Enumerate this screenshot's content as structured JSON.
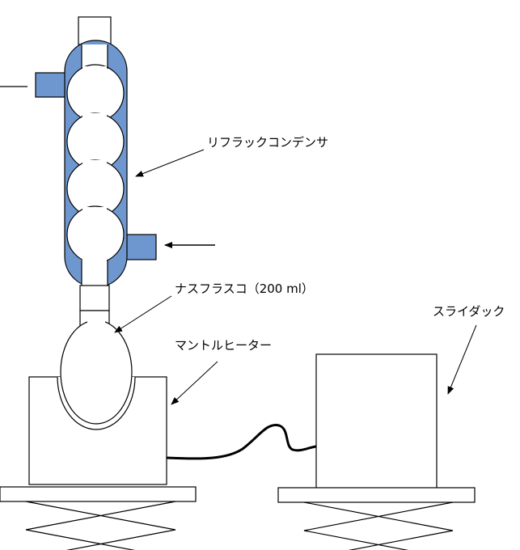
{
  "labels": {
    "condenser": "リフラックコンデンサ",
    "flask": "ナスフラスコ（200 ml）",
    "mantle": "マントルヒーター",
    "slidax": "スライダック"
  },
  "colors": {
    "jacket": "#6f97cf",
    "line": "#000000",
    "background": "#ffffff"
  },
  "components": [
    "reflux-condenser",
    "round-bottom-flask",
    "heating-mantle",
    "slidax",
    "lab-jack-left",
    "lab-jack-right",
    "power-cord",
    "water-outlet",
    "water-inlet"
  ]
}
